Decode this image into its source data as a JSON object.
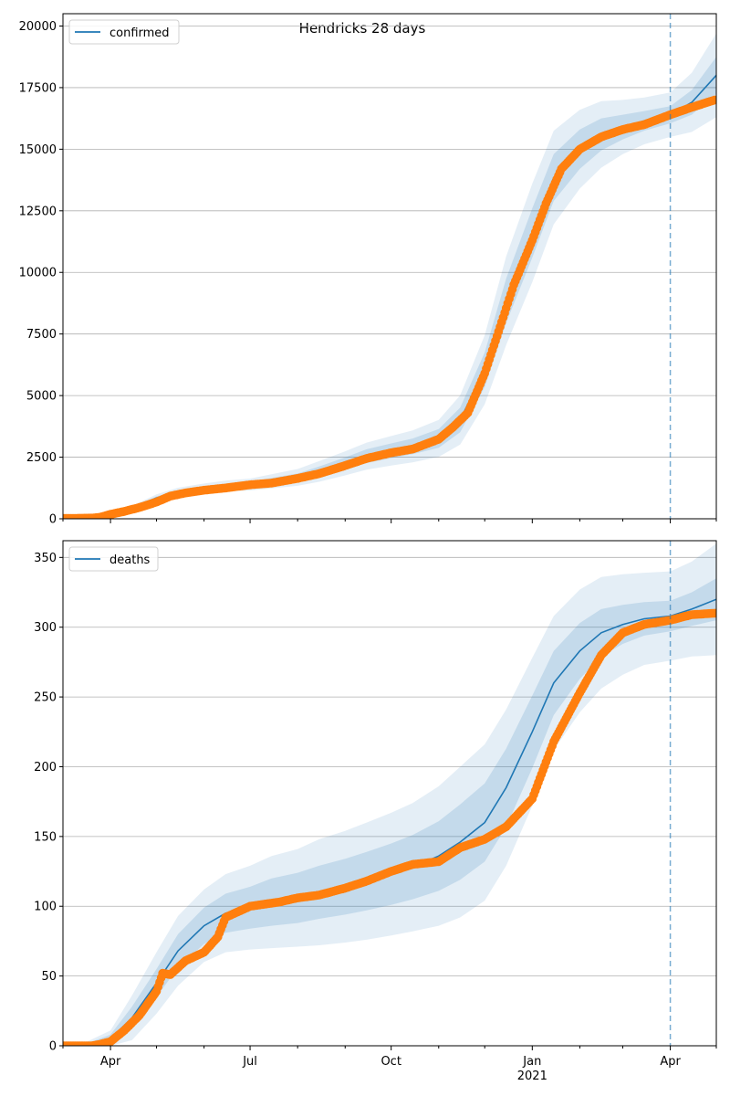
{
  "figure": {
    "title": "Hendricks 28 days"
  },
  "chart_data": [
    {
      "type": "line",
      "legend": {
        "label": "confirmed",
        "placement": "top-left"
      },
      "grid": "y",
      "ylim": [
        0,
        20500
      ],
      "yticks": [
        0,
        2500,
        5000,
        7500,
        10000,
        12500,
        15000,
        17500,
        20000
      ],
      "ytick_labels": [
        "0",
        "2500",
        "5000",
        "7500",
        "10000",
        "12500",
        "15000",
        "17500",
        "20000"
      ],
      "forecast_start": "2021-04-01",
      "model": {
        "x": [
          "2020-03-01",
          "2020-03-15",
          "2020-04-01",
          "2020-04-15",
          "2020-05-01",
          "2020-05-15",
          "2020-06-01",
          "2020-06-15",
          "2020-07-01",
          "2020-07-15",
          "2020-08-01",
          "2020-08-15",
          "2020-09-01",
          "2020-09-15",
          "2020-10-01",
          "2020-10-15",
          "2020-11-01",
          "2020-11-15",
          "2020-12-01",
          "2020-12-15",
          "2021-01-01",
          "2021-01-15",
          "2021-02-01",
          "2021-02-15",
          "2021-03-01",
          "2021-03-15",
          "2021-04-01",
          "2021-04-15",
          "2021-05-01"
        ],
        "y": [
          0,
          20,
          120,
          420,
          850,
          1080,
          1230,
          1330,
          1390,
          1520,
          1680,
          1920,
          2250,
          2540,
          2760,
          2940,
          3260,
          4010,
          6050,
          8850,
          11600,
          13850,
          15000,
          15600,
          15900,
          16150,
          16400,
          16900,
          18000
        ],
        "band_inner": [
          0,
          0,
          30,
          50,
          60,
          80,
          90,
          100,
          110,
          140,
          160,
          200,
          240,
          280,
          300,
          320,
          380,
          500,
          700,
          900,
          1000,
          950,
          800,
          650,
          500,
          400,
          350,
          500,
          750
        ],
        "band_outer": [
          0,
          0,
          60,
          100,
          140,
          180,
          200,
          220,
          240,
          290,
          340,
          420,
          490,
          550,
          600,
          650,
          750,
          1000,
          1400,
          1800,
          2000,
          1900,
          1600,
          1350,
          1100,
          950,
          900,
          1200,
          1700
        ]
      },
      "observed": {
        "x": [
          "2020-03-01",
          "2020-03-10",
          "2020-03-20",
          "2020-03-25",
          "2020-04-01",
          "2020-04-10",
          "2020-04-20",
          "2020-05-01",
          "2020-05-10",
          "2020-05-20",
          "2020-06-01",
          "2020-06-15",
          "2020-07-01",
          "2020-07-15",
          "2020-08-01",
          "2020-08-15",
          "2020-09-01",
          "2020-09-15",
          "2020-10-01",
          "2020-10-15",
          "2020-11-01",
          "2020-11-10",
          "2020-11-20",
          "2020-12-01",
          "2020-12-10",
          "2020-12-20",
          "2021-01-01",
          "2021-01-10",
          "2021-01-20",
          "2021-02-01",
          "2021-02-15",
          "2021-03-01",
          "2021-03-15",
          "2021-04-01",
          "2021-04-15",
          "2021-04-30"
        ],
        "y": [
          20,
          20,
          30,
          60,
          180,
          300,
          460,
          680,
          920,
          1050,
          1160,
          1250,
          1380,
          1450,
          1640,
          1830,
          2160,
          2450,
          2680,
          2830,
          3230,
          3700,
          4300,
          5900,
          7600,
          9500,
          11300,
          12800,
          14200,
          15000,
          15500,
          15800,
          16000,
          16400,
          16700,
          17000
        ]
      }
    },
    {
      "type": "line",
      "legend": {
        "label": "deaths",
        "placement": "top-left"
      },
      "grid": "y",
      "ylim": [
        0,
        362
      ],
      "yticks": [
        0,
        50,
        100,
        150,
        200,
        250,
        300,
        350
      ],
      "ytick_labels": [
        "0",
        "50",
        "100",
        "150",
        "200",
        "250",
        "300",
        "350"
      ],
      "forecast_start": "2021-04-01",
      "xticks": [
        "2020-04-01",
        "2020-07-01",
        "2020-10-01",
        "2021-01-01",
        "2021-04-01"
      ],
      "xtick_labels": [
        "Apr",
        "Jul",
        "Oct",
        "Jan",
        "Apr"
      ],
      "x_year_label": "2021",
      "model": {
        "x": [
          "2020-03-01",
          "2020-03-15",
          "2020-04-01",
          "2020-04-15",
          "2020-05-01",
          "2020-05-15",
          "2020-06-01",
          "2020-06-15",
          "2020-07-01",
          "2020-07-15",
          "2020-08-01",
          "2020-08-15",
          "2020-09-01",
          "2020-09-15",
          "2020-10-01",
          "2020-10-15",
          "2020-11-01",
          "2020-11-15",
          "2020-12-01",
          "2020-12-15",
          "2021-01-01",
          "2021-01-15",
          "2021-02-01",
          "2021-02-15",
          "2021-03-01",
          "2021-03-15",
          "2021-04-01",
          "2021-04-15",
          "2021-05-01"
        ],
        "y": [
          0,
          0,
          5,
          20,
          45,
          68,
          86,
          95,
          99,
          103,
          106,
          110,
          114,
          118,
          123,
          128,
          136,
          146,
          160,
          185,
          225,
          260,
          283,
          296,
          302,
          306,
          308,
          313,
          320
        ],
        "band_inner": [
          0,
          1,
          3,
          8,
          10,
          12,
          13,
          14,
          15,
          17,
          18,
          19,
          20,
          21,
          22,
          23,
          25,
          27,
          28,
          28,
          26,
          23,
          20,
          17,
          14,
          12,
          11,
          12,
          15
        ],
        "band_outer": [
          0,
          2,
          6,
          16,
          22,
          25,
          26,
          28,
          30,
          33,
          35,
          38,
          40,
          42,
          44,
          46,
          50,
          54,
          56,
          56,
          53,
          48,
          44,
          40,
          36,
          33,
          32,
          34,
          40
        ]
      },
      "observed": {
        "x": [
          "2020-03-01",
          "2020-03-20",
          "2020-03-25",
          "2020-04-01",
          "2020-04-10",
          "2020-04-20",
          "2020-05-01",
          "2020-05-05",
          "2020-05-10",
          "2020-05-20",
          "2020-06-01",
          "2020-06-10",
          "2020-06-15",
          "2020-07-01",
          "2020-07-20",
          "2020-08-01",
          "2020-08-15",
          "2020-09-01",
          "2020-09-15",
          "2020-10-01",
          "2020-10-15",
          "2020-11-01",
          "2020-11-15",
          "2020-12-01",
          "2020-12-15",
          "2021-01-01",
          "2021-01-15",
          "2021-02-01",
          "2021-02-15",
          "2021-03-01",
          "2021-03-15",
          "2021-04-01",
          "2021-04-15",
          "2021-04-30"
        ],
        "y": [
          0,
          0,
          1,
          3,
          11,
          22,
          39,
          52,
          51,
          61,
          67,
          78,
          92,
          100,
          103,
          106,
          108,
          113,
          118,
          125,
          130,
          132,
          142,
          148,
          157,
          177,
          218,
          253,
          280,
          296,
          302,
          305,
          309,
          310
        ]
      }
    }
  ]
}
